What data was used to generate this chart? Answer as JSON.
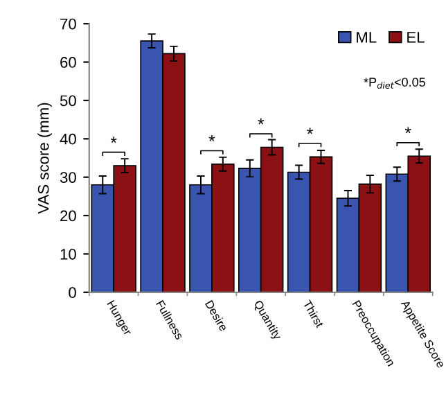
{
  "chart_data": {
    "type": "bar",
    "ylabel": "VAS score (mm)",
    "categories": [
      "Hunger",
      "Fullness",
      "Desire",
      "Quantity",
      "Thirst",
      "Preoccupation",
      "Appetite Score"
    ],
    "series": [
      {
        "name": "ML",
        "color": "#3a55b0",
        "values": [
          28,
          65.5,
          28,
          32.3,
          31.3,
          24.5,
          30.8
        ],
        "errors": [
          2.3,
          1.8,
          2.3,
          2.2,
          1.8,
          2,
          1.8
        ]
      },
      {
        "name": "EL",
        "color": "#8b1115",
        "values": [
          33,
          62.2,
          33.4,
          37.8,
          35.3,
          28.2,
          35.5
        ],
        "errors": [
          1.8,
          1.9,
          1.8,
          2,
          1.7,
          2.3,
          1.8
        ]
      }
    ],
    "ylim": [
      0,
      70
    ],
    "yticks": [
      0,
      10,
      20,
      30,
      40,
      50,
      60,
      70
    ],
    "grid": false,
    "legend": "top right",
    "annotations": [
      {
        "text": "*",
        "x": "Hunger",
        "y": 33
      },
      {
        "text": "*",
        "x": "Desire",
        "y": 33.4
      },
      {
        "text": "*",
        "x": "Quantity",
        "y": 37.8
      },
      {
        "text": "*",
        "x": "Thirst",
        "y": 35.3
      },
      {
        "text": "*",
        "x": "Appetite Score",
        "y": 35.5
      },
      "*P$_{diet}$<0.05"
    ]
  }
}
